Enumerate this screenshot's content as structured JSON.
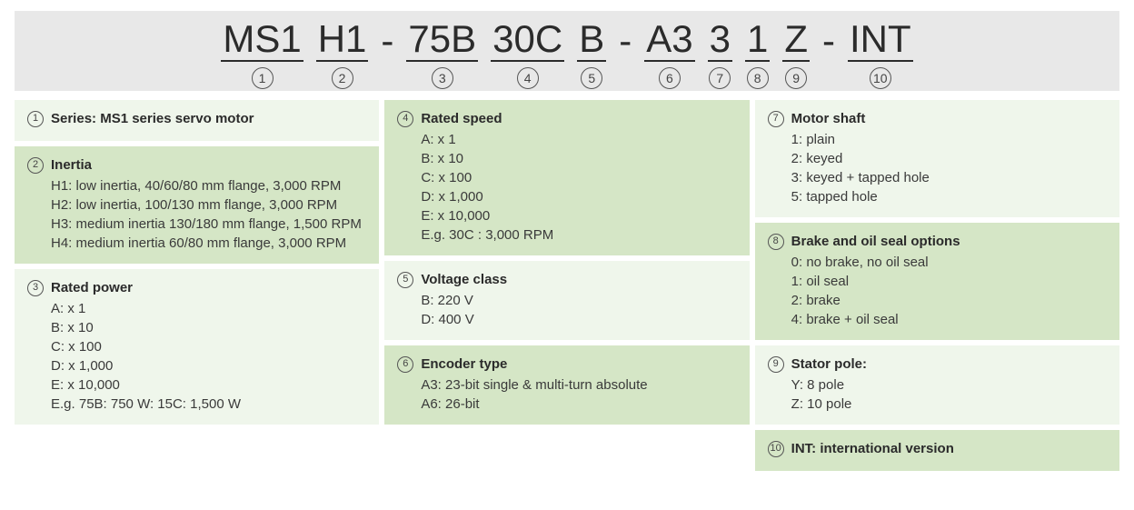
{
  "colors": {
    "header_bg": "#e8e8e8",
    "card_light": "#eff6eb",
    "card_dark": "#d5e6c6",
    "text": "#3a3a3a",
    "title_text": "#2b2b2b",
    "circle_border": "#555555"
  },
  "header": {
    "segments": [
      {
        "text": "MS1",
        "num": "1"
      },
      {
        "text": "H1",
        "num": "2"
      },
      {
        "dash": "-"
      },
      {
        "text": "75B",
        "num": "3"
      },
      {
        "text": "30C",
        "num": "4"
      },
      {
        "text": "B",
        "num": "5"
      },
      {
        "dash": "-"
      },
      {
        "text": "A3",
        "num": "6"
      },
      {
        "text": "3",
        "num": "7"
      },
      {
        "text": "1",
        "num": "8"
      },
      {
        "text": "Z",
        "num": "9"
      },
      {
        "dash": "-"
      },
      {
        "text": "INT",
        "num": "10"
      }
    ]
  },
  "columns": [
    [
      {
        "shade": "light",
        "num": "1",
        "title": "Series: MS1 series servo motor",
        "lines": []
      },
      {
        "shade": "dark",
        "num": "2",
        "title": "Inertia",
        "lines": [
          "H1: low inertia, 40/60/80 mm flange, 3,000 RPM",
          "H2: low inertia, 100/130 mm flange, 3,000 RPM",
          "H3: medium inertia 130/180 mm flange, 1,500 RPM",
          "H4: medium inertia 60/80 mm flange, 3,000 RPM"
        ]
      },
      {
        "shade": "light",
        "num": "3",
        "title": "Rated power",
        "lines": [
          "A: x 1",
          "B: x 10",
          "C: x 100",
          "D: x 1,000",
          "E: x 10,000",
          "E.g. 75B: 750 W: 15C: 1,500 W"
        ]
      }
    ],
    [
      {
        "shade": "dark",
        "num": "4",
        "title": "Rated speed",
        "lines": [
          "A: x 1",
          "B: x 10",
          "C: x 100",
          "D: x 1,000",
          "E: x 10,000",
          "E.g. 30C : 3,000 RPM"
        ]
      },
      {
        "shade": "light",
        "num": "5",
        "title": "Voltage class",
        "lines": [
          "B: 220 V",
          "D: 400 V"
        ]
      },
      {
        "shade": "dark",
        "num": "6",
        "title": "Encoder type",
        "lines": [
          "A3: 23-bit single & multi-turn absolute",
          "A6: 26-bit"
        ]
      }
    ],
    [
      {
        "shade": "light",
        "num": "7",
        "title": "Motor shaft",
        "lines": [
          "1: plain",
          "2: keyed",
          "3: keyed + tapped hole",
          "5: tapped hole"
        ]
      },
      {
        "shade": "dark",
        "num": "8",
        "title": "Brake and oil seal options",
        "lines": [
          "0: no brake, no oil seal",
          "1: oil seal",
          "2: brake",
          "4: brake + oil seal"
        ]
      },
      {
        "shade": "light",
        "num": "9",
        "title": "Stator pole:",
        "lines": [
          "Y: 8 pole",
          "Z: 10 pole"
        ]
      },
      {
        "shade": "dark",
        "num": "10",
        "title": "INT: international version",
        "lines": []
      }
    ]
  ]
}
